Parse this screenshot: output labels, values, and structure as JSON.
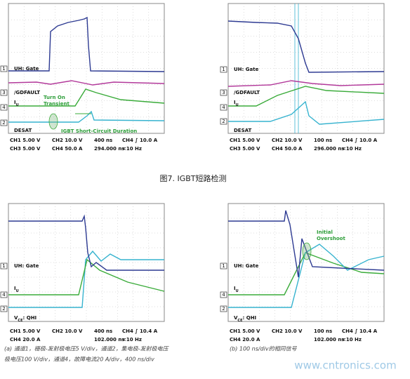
{
  "panels": [
    {
      "channels": [
        {
          "number": "1",
          "label": [
            "UH: Gate"
          ]
        },
        {
          "number": "3",
          "label": [
            "/GDFAULT"
          ]
        },
        {
          "number": "4",
          "label": [
            "I",
            "U"
          ]
        },
        {
          "number": "2",
          "label": [
            "DESAT"
          ]
        }
      ],
      "annotations": [
        {
          "lines": [
            "Turn On",
            "Transient"
          ]
        },
        {
          "lines": [
            "IGBT Short-Circuit Duration"
          ]
        }
      ],
      "readout": [
        [
          "CH1 5.00 V",
          "CH2 10.0 V",
          "400 ns",
          "CH4 ∫ 10.0 A"
        ],
        [
          "CH3 5.00 V",
          "CH4 50.0 A",
          "294.000 ns",
          "<10 Hz"
        ]
      ]
    },
    {
      "channels": [
        {
          "number": "1",
          "label": [
            "UH: Gate"
          ]
        },
        {
          "number": "3",
          "label": [
            "/GDFAULT"
          ]
        },
        {
          "number": "4",
          "label": [
            "I",
            "U"
          ]
        },
        {
          "number": "2",
          "label": [
            "DESAT"
          ]
        }
      ],
      "annotations": [],
      "readout": [
        [
          "CH1 5.00 V",
          "CH2 10.0 V",
          "100 ns",
          "CH4 ∫ 10.0 A"
        ],
        [
          "CH3 5.00 V",
          "CH4 50.0 A",
          "296.000 ns",
          "<10 Hz"
        ]
      ]
    },
    {
      "channels": [
        {
          "number": "1",
          "label": [
            "UH: Gate"
          ]
        },
        {
          "number": "4",
          "label": [
            "I",
            "U"
          ]
        },
        {
          "number": "2",
          "label": [
            "V",
            "CE",
            ": QHI"
          ]
        }
      ],
      "annotations": [],
      "readout": [
        [
          "CH1 5.00 V",
          "CH2 10.0 V",
          "400 ns",
          "CH4 ∫ 10.4 A"
        ],
        [
          "CH4 20.0 A",
          "",
          "102.000 ns",
          "<10 Hz"
        ]
      ]
    },
    {
      "channels": [
        {
          "number": "1",
          "label": [
            "UH: Gate"
          ]
        },
        {
          "number": "4",
          "label": [
            "I",
            "U"
          ]
        },
        {
          "number": "2",
          "label": [
            "V",
            "CE",
            ": QHI"
          ]
        }
      ],
      "annotations": [
        {
          "lines": [
            "Initial",
            "Overshoot"
          ]
        }
      ],
      "readout": [
        [
          "CH1 5.00 V",
          "CH2 10.0 V",
          "100 ns",
          "CH4 ∫ 10.4 A"
        ],
        [
          "CH4 20.0 A",
          "",
          "102.000 ns",
          "<10 Hz"
        ]
      ]
    }
  ],
  "figure_caption": "图7. IGBT短路检测",
  "captions": [
    [
      "(a) 通道1，栅极-发射极电压5 V/div，通道2，集电极-发射极电压",
      "极电压100 V/div，通道4，故障电流20 A/div，400 ns/div"
    ],
    [
      "(b) 100 ns/div的相同信号"
    ]
  ],
  "watermark": "www.cntronics.com"
}
